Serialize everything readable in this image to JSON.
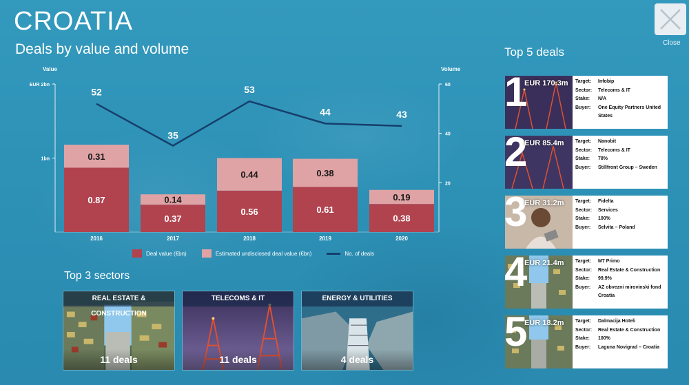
{
  "header": {
    "title": "CROATIA",
    "subtitle": "Deals by value and volume",
    "close_label": "Close"
  },
  "chart_data": {
    "type": "bar",
    "categories": [
      "2016",
      "2017",
      "2018",
      "2019",
      "2020"
    ],
    "series": [
      {
        "name": "Deal value (€bn)",
        "values": [
          0.87,
          0.37,
          0.56,
          0.61,
          0.38
        ],
        "color": "#b1434f"
      },
      {
        "name": "Estimated undisclosed deal value (€bn)",
        "values": [
          0.31,
          0.14,
          0.44,
          0.38,
          0.19
        ],
        "color": "#dfa3a5"
      },
      {
        "name": "No. of deals",
        "values": [
          52,
          35,
          53,
          44,
          43
        ],
        "color": "#163e6c",
        "kind": "line",
        "axis": "right"
      }
    ],
    "left_axis": {
      "label": "Value",
      "ticks": [
        "EUR 2bn",
        "1bn"
      ],
      "tick_values": [
        2,
        1
      ],
      "ylim": [
        0,
        2
      ]
    },
    "right_axis": {
      "label": "Volume",
      "ticks": [
        "60",
        "40",
        "20"
      ],
      "tick_values": [
        60,
        40,
        20
      ],
      "ylim": [
        0,
        60
      ]
    },
    "legend": [
      "Deal value (€bn)",
      "Estimated undisclosed deal value (€bn)",
      "No. of deals"
    ]
  },
  "sectors": {
    "title": "Top 3 sectors",
    "items": [
      {
        "name": "REAL ESTATE & CONSTRUCTION",
        "deals": "11 deals"
      },
      {
        "name": "TELECOMS & IT",
        "deals": "11 deals"
      },
      {
        "name": "ENERGY & UTILITIES",
        "deals": "4 deals"
      }
    ]
  },
  "top_deals": {
    "title": "Top 5 deals",
    "labels": {
      "target": "Target:",
      "sector": "Sector:",
      "stake": "Stake:",
      "buyer": "Buyer:"
    },
    "items": [
      {
        "rank": "1",
        "value": "EUR 170.3m",
        "target": "Infobip",
        "sector": "Telecoms & IT",
        "stake": "N/A",
        "buyer": "One Equity Partners United States"
      },
      {
        "rank": "2",
        "value": "EUR 85.4m",
        "target": "Nanobit",
        "sector": "Telecoms & IT",
        "stake": "78%",
        "buyer": "Stillfront Group – Sweden"
      },
      {
        "rank": "3",
        "value": "EUR 31.2m",
        "target": "Fidelta",
        "sector": "Services",
        "stake": "100%",
        "buyer": "Selvita – Poland"
      },
      {
        "rank": "4",
        "value": "EUR 21.4m",
        "target": "M7 Primo",
        "sector": "Real Estate & Construction",
        "stake": "99.9%",
        "buyer": "AZ obvezni mirovinski fond Croatia"
      },
      {
        "rank": "5",
        "value": "EUR 18.2m",
        "target": "Dalmacija Hoteli",
        "sector": "Real Estate & Construction",
        "stake": "100%",
        "buyer": "Laguna Novigrad – Croatia"
      }
    ]
  }
}
